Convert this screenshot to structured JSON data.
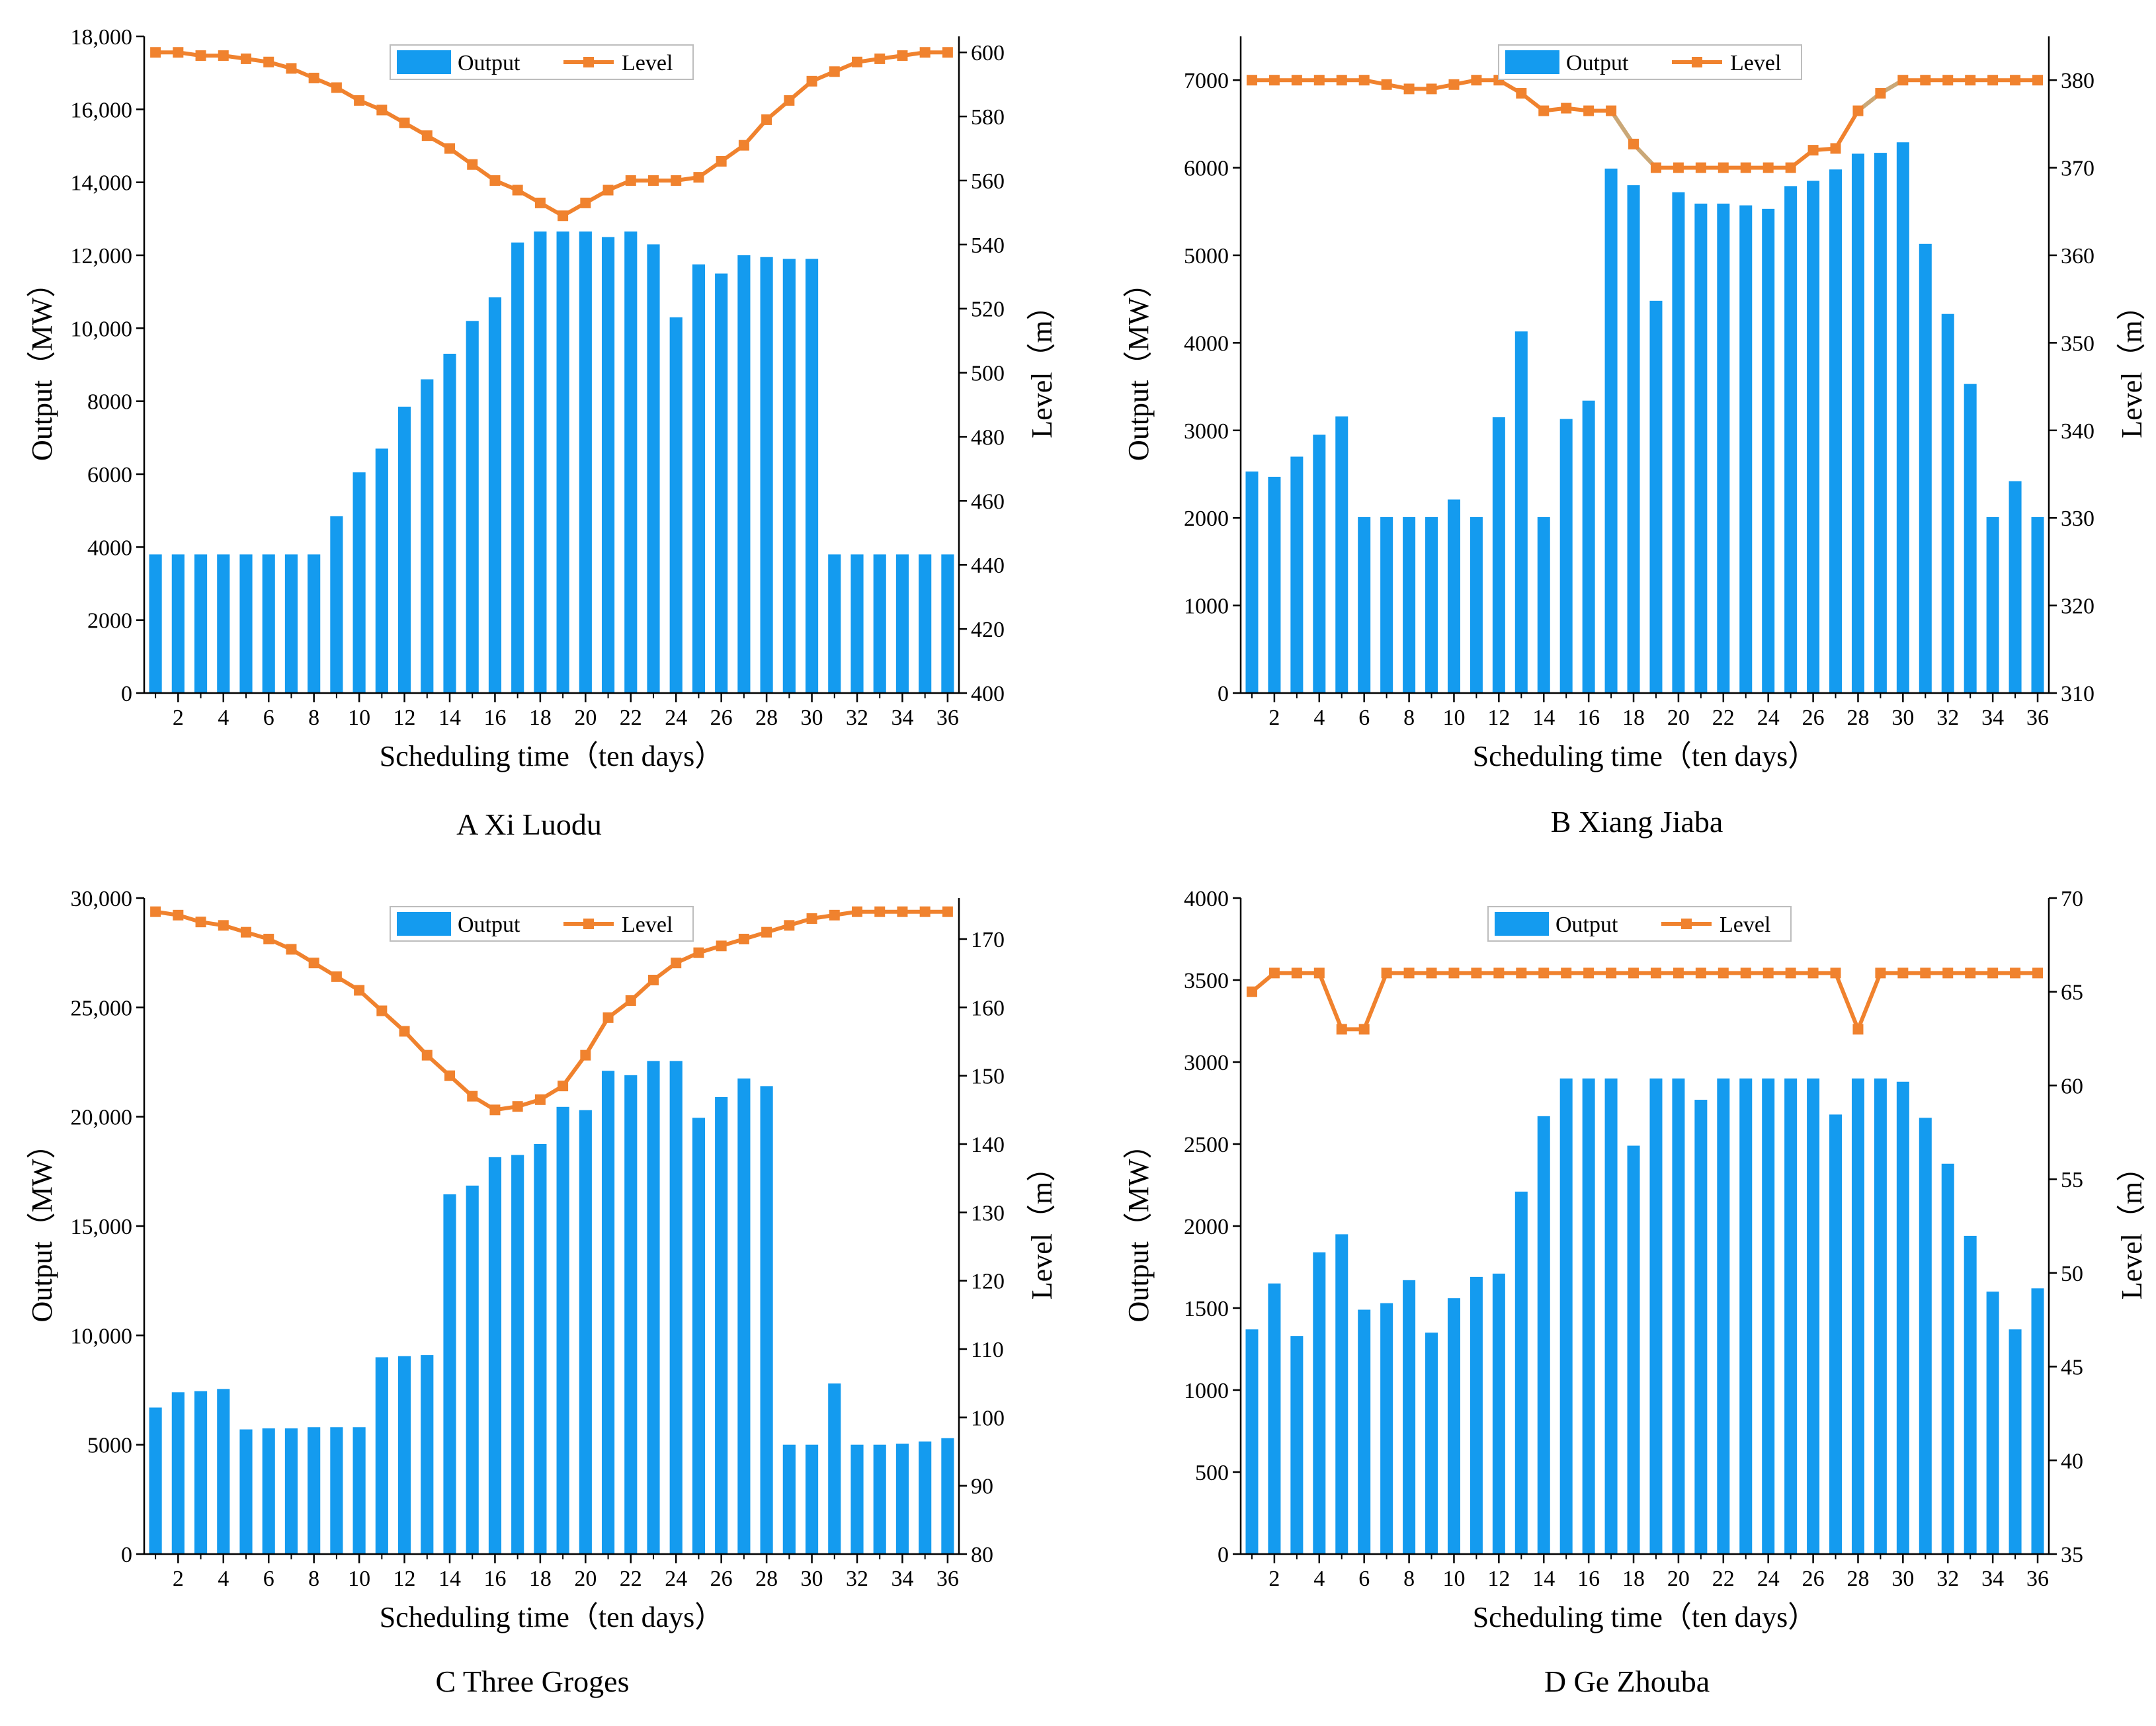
{
  "colors": {
    "bar": "#149BEF",
    "line": "#F0822E",
    "line_alt": "#C9A878",
    "axis": "#000000",
    "legend_border": "#bdbdbd"
  },
  "chart_data": [
    {
      "id": "A",
      "type": "bar+line",
      "caption": "A Xi Luodu",
      "xlabel": "Scheduling time（ten days）",
      "ylabel_left": "Output（MW）",
      "ylabel_right": "Level（m）",
      "x_ticks": [
        2,
        4,
        6,
        8,
        10,
        12,
        14,
        16,
        18,
        20,
        22,
        24,
        26,
        28,
        30,
        32,
        34,
        36
      ],
      "left_ylim": [
        0,
        18000
      ],
      "left_ticks": [
        0,
        2000,
        4000,
        6000,
        8000,
        10000,
        12000,
        14000,
        16000,
        18000
      ],
      "left_tick_labels": [
        "0",
        "2000",
        "4000",
        "6000",
        "8000",
        "10,000",
        "12,000",
        "14,000",
        "16,000",
        "18,000"
      ],
      "right_ylim": [
        400,
        605
      ],
      "right_ticks": [
        400,
        420,
        440,
        460,
        480,
        500,
        520,
        540,
        560,
        580,
        600
      ],
      "right_tick_labels": [
        "400",
        "420",
        "440",
        "460",
        "480",
        "500",
        "520",
        "540",
        "560",
        "580",
        "600"
      ],
      "legend": [
        "Output",
        "Level"
      ],
      "series": [
        {
          "name": "Output",
          "kind": "bar",
          "values": [
            3800,
            3800,
            3800,
            3800,
            3800,
            3800,
            3800,
            3800,
            4850,
            6050,
            6700,
            7850,
            8600,
            9300,
            10200,
            10850,
            12350,
            12650,
            12650,
            12650,
            12500,
            12650,
            12300,
            10300,
            11750,
            11500,
            12000,
            11950,
            11900,
            11900,
            3800,
            3800,
            3800,
            3800,
            3800,
            3800
          ]
        },
        {
          "name": "Level",
          "kind": "line",
          "values": [
            600,
            600,
            599,
            599,
            598,
            597,
            595,
            592,
            589,
            585,
            582,
            578,
            574,
            570,
            565,
            560,
            557,
            553,
            549,
            553,
            557,
            560,
            560,
            560,
            561,
            566,
            571,
            579,
            585,
            591,
            594,
            597,
            598,
            599,
            600,
            600
          ]
        }
      ]
    },
    {
      "id": "B",
      "type": "bar+line",
      "caption": "B Xiang Jiaba",
      "xlabel": "Scheduling time（ten days）",
      "ylabel_left": "Output（MW）",
      "ylabel_right": "Level（m）",
      "x_ticks": [
        2,
        4,
        6,
        8,
        10,
        12,
        14,
        16,
        18,
        20,
        22,
        24,
        26,
        28,
        30,
        32,
        34,
        36
      ],
      "left_ylim": [
        0,
        7500
      ],
      "left_ticks": [
        0,
        1000,
        2000,
        3000,
        4000,
        5000,
        6000,
        7000
      ],
      "left_tick_labels": [
        "0",
        "1000",
        "2000",
        "3000",
        "4000",
        "5000",
        "6000",
        "7000"
      ],
      "right_ylim": [
        310,
        385
      ],
      "right_ticks": [
        310,
        320,
        330,
        340,
        350,
        360,
        370,
        380
      ],
      "right_tick_labels": [
        "310",
        "320",
        "330",
        "340",
        "350",
        "360",
        "370",
        "380"
      ],
      "legend": [
        "Output",
        "Level"
      ],
      "series": [
        {
          "name": "Output",
          "kind": "bar",
          "values": [
            2530,
            2470,
            2700,
            2950,
            3160,
            2010,
            2010,
            2010,
            2010,
            2210,
            2010,
            3150,
            4130,
            2010,
            3130,
            3340,
            5990,
            5800,
            4480,
            5720,
            5590,
            5590,
            5570,
            5530,
            5790,
            5850,
            5980,
            6160,
            6170,
            6290,
            5130,
            4330,
            3530,
            2010,
            2420,
            2010
          ]
        },
        {
          "name": "Level",
          "kind": "line",
          "values": [
            380,
            380,
            380,
            380,
            380,
            380,
            379.5,
            379,
            379,
            379.5,
            380,
            380,
            378.5,
            376.5,
            376.8,
            376.5,
            376.5,
            372.7,
            370,
            370,
            370,
            370,
            370,
            370,
            370,
            372,
            372.2,
            376.5,
            378.5,
            380,
            380,
            380,
            380,
            380,
            380,
            380
          ]
        }
      ]
    },
    {
      "id": "C",
      "type": "bar+line",
      "caption": "C Three Groges",
      "xlabel": "Scheduling time（ten days）",
      "ylabel_left": "Output（MW）",
      "ylabel_right": "Level（m）",
      "x_ticks": [
        2,
        4,
        6,
        8,
        10,
        12,
        14,
        16,
        18,
        20,
        22,
        24,
        26,
        28,
        30,
        32,
        34,
        36
      ],
      "left_ylim": [
        0,
        30000
      ],
      "left_ticks": [
        0,
        5000,
        10000,
        15000,
        20000,
        25000,
        30000
      ],
      "left_tick_labels": [
        "0",
        "5000",
        "10,000",
        "15,000",
        "20,000",
        "25,000",
        "30,000"
      ],
      "right_ylim": [
        80,
        176
      ],
      "right_ticks": [
        80,
        90,
        100,
        110,
        120,
        130,
        140,
        150,
        160,
        170
      ],
      "right_tick_labels": [
        "80",
        "90",
        "100",
        "110",
        "120",
        "130",
        "140",
        "150",
        "160",
        "170"
      ],
      "legend": [
        "Output",
        "Level"
      ],
      "series": [
        {
          "name": "Output",
          "kind": "bar",
          "values": [
            6700,
            7400,
            7450,
            7550,
            5700,
            5750,
            5750,
            5800,
            5800,
            5800,
            9000,
            9050,
            9100,
            16450,
            16850,
            18150,
            18250,
            18750,
            20450,
            20300,
            22100,
            21900,
            22550,
            22550,
            19950,
            20900,
            21750,
            21400,
            5000,
            5000,
            7800,
            5000,
            5000,
            5050,
            5150,
            5300
          ]
        },
        {
          "name": "Level",
          "kind": "line",
          "values": [
            174,
            173.5,
            172.5,
            172,
            171,
            170,
            168.5,
            166.5,
            164.5,
            162.5,
            159.5,
            156.5,
            153,
            150,
            147,
            145,
            145.5,
            146.5,
            148.5,
            153,
            158.5,
            161,
            164,
            166.5,
            168,
            169,
            170,
            171,
            172,
            173,
            173.5,
            174,
            174,
            174,
            174,
            174
          ]
        }
      ]
    },
    {
      "id": "D",
      "type": "bar+line",
      "caption": "D Ge Zhouba",
      "xlabel": "Scheduling time（ten days）",
      "ylabel_left": "Output（MW）",
      "ylabel_right": "Level（m）",
      "x_ticks": [
        2,
        4,
        6,
        8,
        10,
        12,
        14,
        16,
        18,
        20,
        22,
        24,
        26,
        28,
        30,
        32,
        34,
        36
      ],
      "left_ylim": [
        0,
        4000
      ],
      "left_ticks": [
        0,
        500,
        1000,
        1500,
        2000,
        2500,
        3000,
        3500,
        4000
      ],
      "left_tick_labels": [
        "0",
        "500",
        "1000",
        "1500",
        "2000",
        "2500",
        "3000",
        "3500",
        "4000"
      ],
      "right_ylim": [
        35,
        70
      ],
      "right_ticks": [
        35,
        40,
        45,
        50,
        55,
        60,
        65,
        70
      ],
      "right_tick_labels": [
        "35",
        "40",
        "45",
        "50",
        "55",
        "60",
        "65",
        "70"
      ],
      "legend": [
        "Output",
        "Level"
      ],
      "series": [
        {
          "name": "Output",
          "kind": "bar",
          "values": [
            1370,
            1650,
            1330,
            1840,
            1950,
            1490,
            1530,
            1670,
            1350,
            1560,
            1690,
            1710,
            2210,
            2670,
            2900,
            2900,
            2900,
            2490,
            2900,
            2900,
            2770,
            2900,
            2900,
            2900,
            2900,
            2900,
            2680,
            2900,
            2900,
            2880,
            2660,
            2380,
            1940,
            1600,
            1370,
            1620
          ]
        },
        {
          "name": "Level",
          "kind": "line",
          "values": [
            65,
            66,
            66,
            66,
            63,
            63,
            66,
            66,
            66,
            66,
            66,
            66,
            66,
            66,
            66,
            66,
            66,
            66,
            66,
            66,
            66,
            66,
            66,
            66,
            66,
            66,
            66,
            63,
            66,
            66,
            66,
            66,
            66,
            66,
            66,
            66
          ]
        }
      ]
    }
  ]
}
